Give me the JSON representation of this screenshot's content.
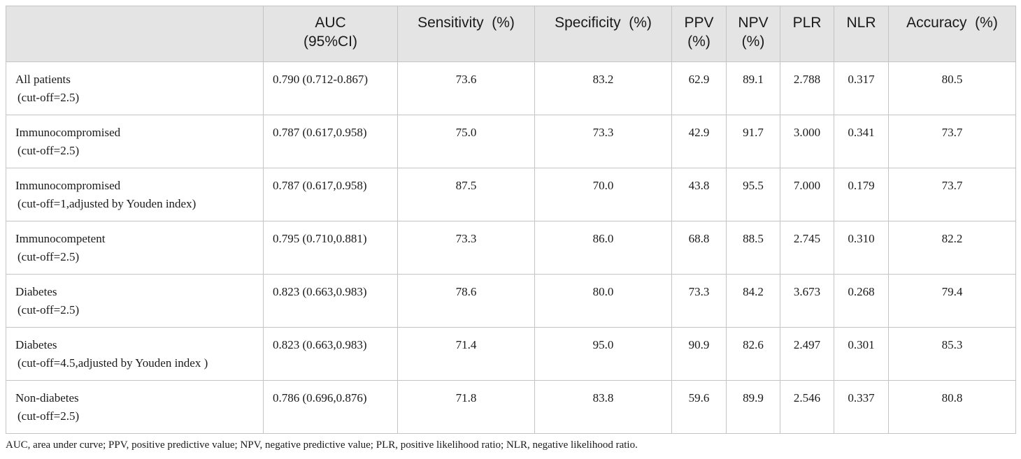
{
  "table": {
    "columns": [
      {
        "l1": "",
        "l2": ""
      },
      {
        "l1": "AUC",
        "l2": "(95%CI)"
      },
      {
        "l1": "Sensitivity  (%)",
        "l2": ""
      },
      {
        "l1": "Specificity  (%)",
        "l2": ""
      },
      {
        "l1": "PPV",
        "l2": "(%)"
      },
      {
        "l1": "NPV",
        "l2": "(%)"
      },
      {
        "l1": "PLR",
        "l2": ""
      },
      {
        "l1": "NLR",
        "l2": ""
      },
      {
        "l1": "Accuracy  (%)",
        "l2": ""
      }
    ],
    "rows": [
      {
        "group": "All patients",
        "cutoff": "(cut-off=2.5)",
        "auc": "0.790 (0.712-0.867)",
        "sensitivity": "73.6",
        "specificity": "83.2",
        "ppv": "62.9",
        "npv": "89.1",
        "plr": "2.788",
        "nlr": "0.317",
        "accuracy": "80.5"
      },
      {
        "group": "Immunocompromised",
        "cutoff": "(cut-off=2.5)",
        "auc": "0.787 (0.617,0.958)",
        "sensitivity": "75.0",
        "specificity": "73.3",
        "ppv": "42.9",
        "npv": "91.7",
        "plr": "3.000",
        "nlr": "0.341",
        "accuracy": "73.7"
      },
      {
        "group": "Immunocompromised",
        "cutoff": "(cut-off=1,adjusted by Youden index)",
        "auc": "0.787 (0.617,0.958)",
        "sensitivity": "87.5",
        "specificity": "70.0",
        "ppv": "43.8",
        "npv": "95.5",
        "plr": "7.000",
        "nlr": "0.179",
        "accuracy": "73.7"
      },
      {
        "group": "Immunocompetent",
        "cutoff": "(cut-off=2.5)",
        "auc": "0.795 (0.710,0.881)",
        "sensitivity": "73.3",
        "specificity": "86.0",
        "ppv": "68.8",
        "npv": "88.5",
        "plr": "2.745",
        "nlr": "0.310",
        "accuracy": "82.2"
      },
      {
        "group": "Diabetes",
        "cutoff": "(cut-off=2.5)",
        "auc": "0.823 (0.663,0.983)",
        "sensitivity": "78.6",
        "specificity": "80.0",
        "ppv": "73.3",
        "npv": "84.2",
        "plr": "3.673",
        "nlr": "0.268",
        "accuracy": "79.4"
      },
      {
        "group": "Diabetes",
        "cutoff": "(cut-off=4.5,adjusted by Youden index )",
        "auc": "0.823 (0.663,0.983)",
        "sensitivity": "71.4",
        "specificity": "95.0",
        "ppv": "90.9",
        "npv": "82.6",
        "plr": "2.497",
        "nlr": "0.301",
        "accuracy": "85.3"
      },
      {
        "group": "Non-diabetes",
        "cutoff": "(cut-off=2.5)",
        "auc": "0.786 (0.696,0.876)",
        "sensitivity": "71.8",
        "specificity": "83.8",
        "ppv": "59.6",
        "npv": "89.9",
        "plr": "2.546",
        "nlr": "0.337",
        "accuracy": "80.8"
      }
    ]
  },
  "footnote": "AUC, area under curve; PPV, positive predictive value; NPV, negative predictive value; PLR, positive likelihood ratio; NLR, negative likelihood ratio."
}
